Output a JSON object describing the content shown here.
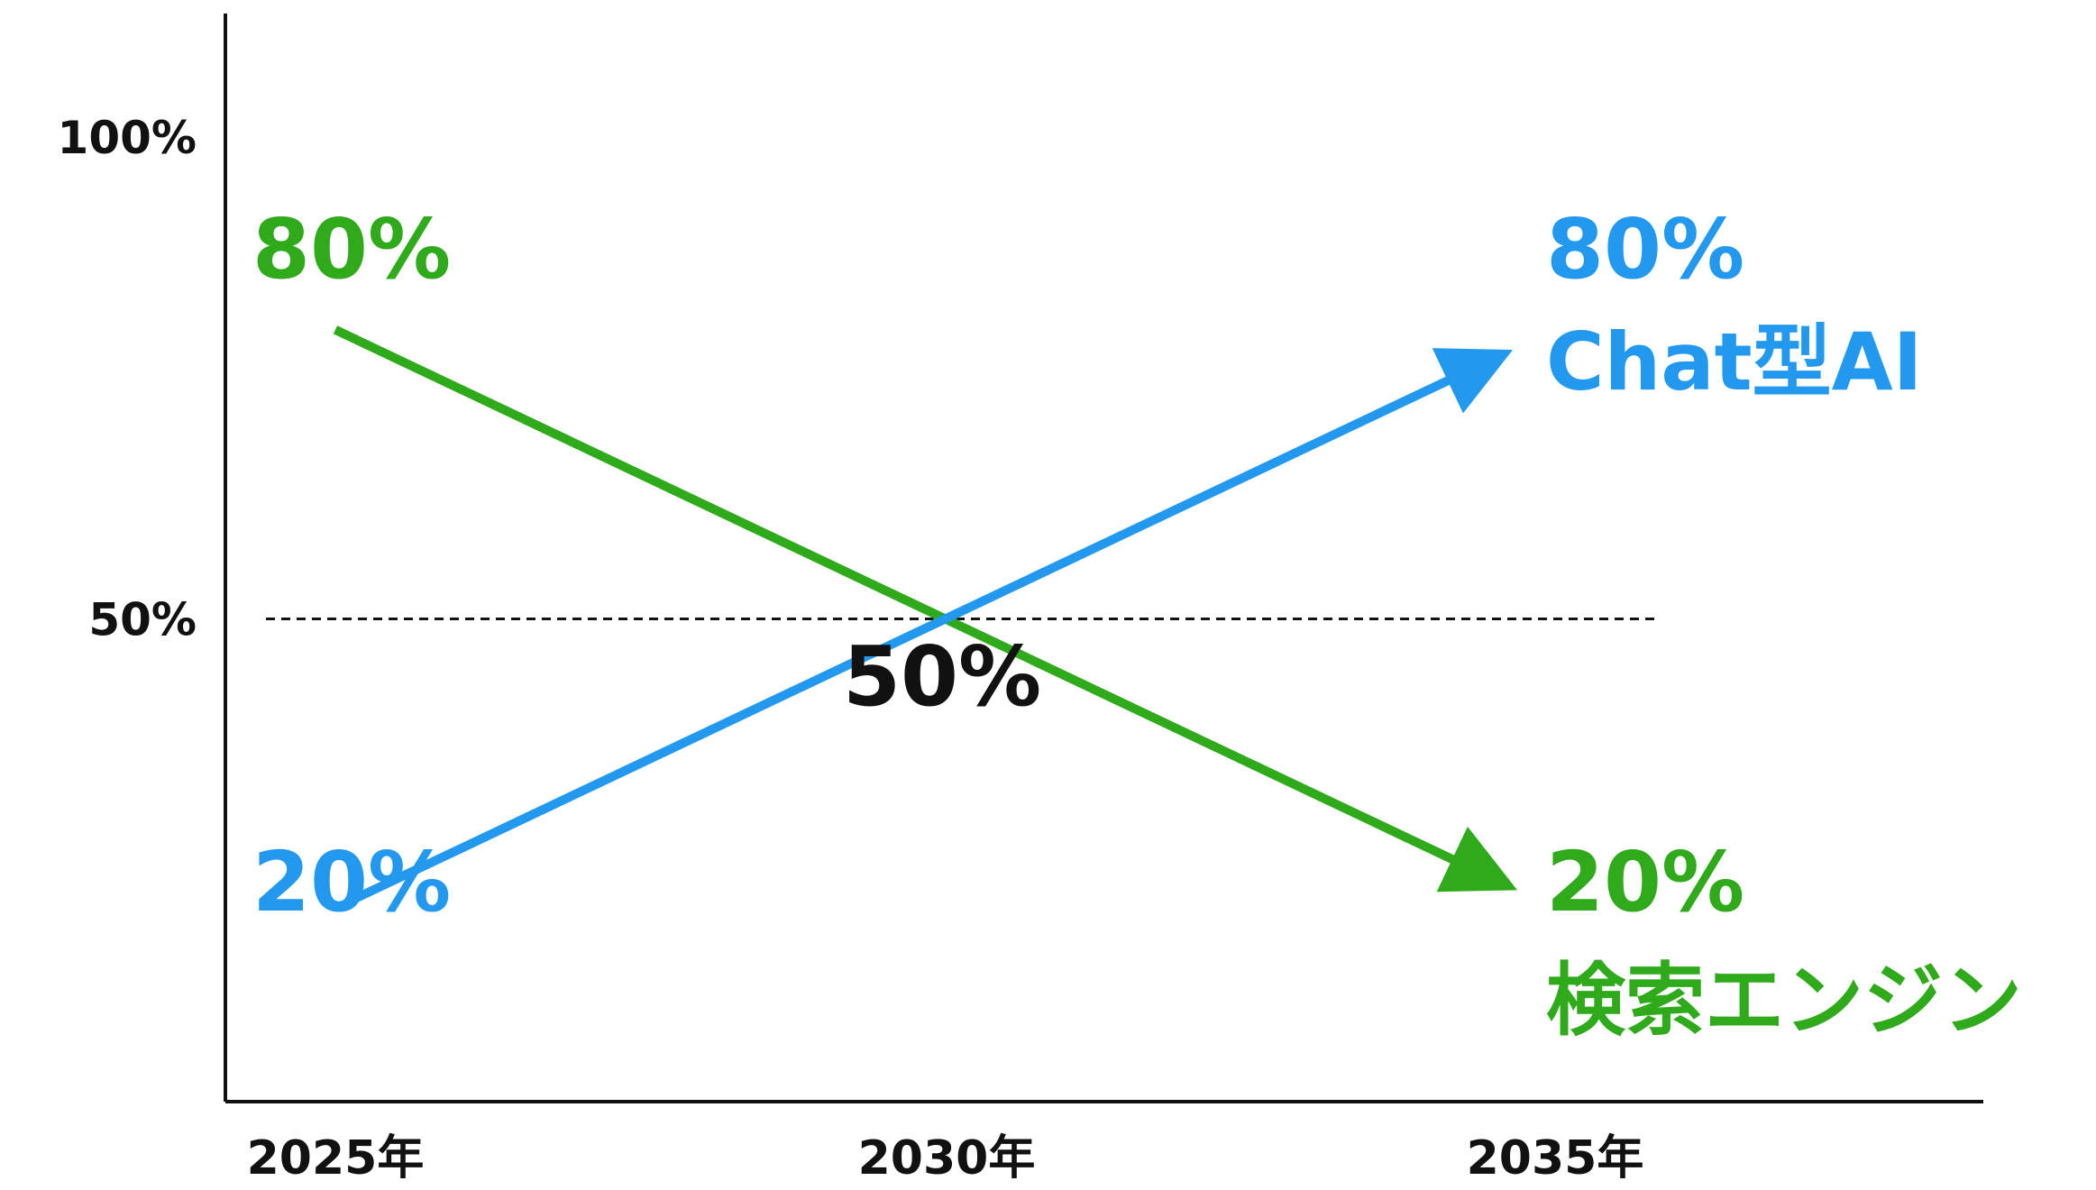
{
  "chart_data": {
    "type": "line",
    "x": [
      "2025年",
      "2030年",
      "2035年"
    ],
    "x_ticks": [
      "2025年",
      "2030年",
      "2035年"
    ],
    "y_ticks": [
      "100%",
      "50%"
    ],
    "ylim": [
      0,
      100
    ],
    "grid": false,
    "reference_line": {
      "y": 50,
      "style": "dashed"
    },
    "series": [
      {
        "name": "検索エンジン",
        "color": "#2eaa1b",
        "values": [
          80,
          50,
          20
        ],
        "start_label": "80%",
        "end_label": "20%"
      },
      {
        "name": "Chat型AI",
        "color": "#2299ee",
        "values": [
          20,
          50,
          80
        ],
        "start_label": "20%",
        "end_label": "80%"
      }
    ],
    "annotations": [
      {
        "text": "50%",
        "x": "2030年",
        "y": 50,
        "color": "#111111"
      }
    ]
  }
}
